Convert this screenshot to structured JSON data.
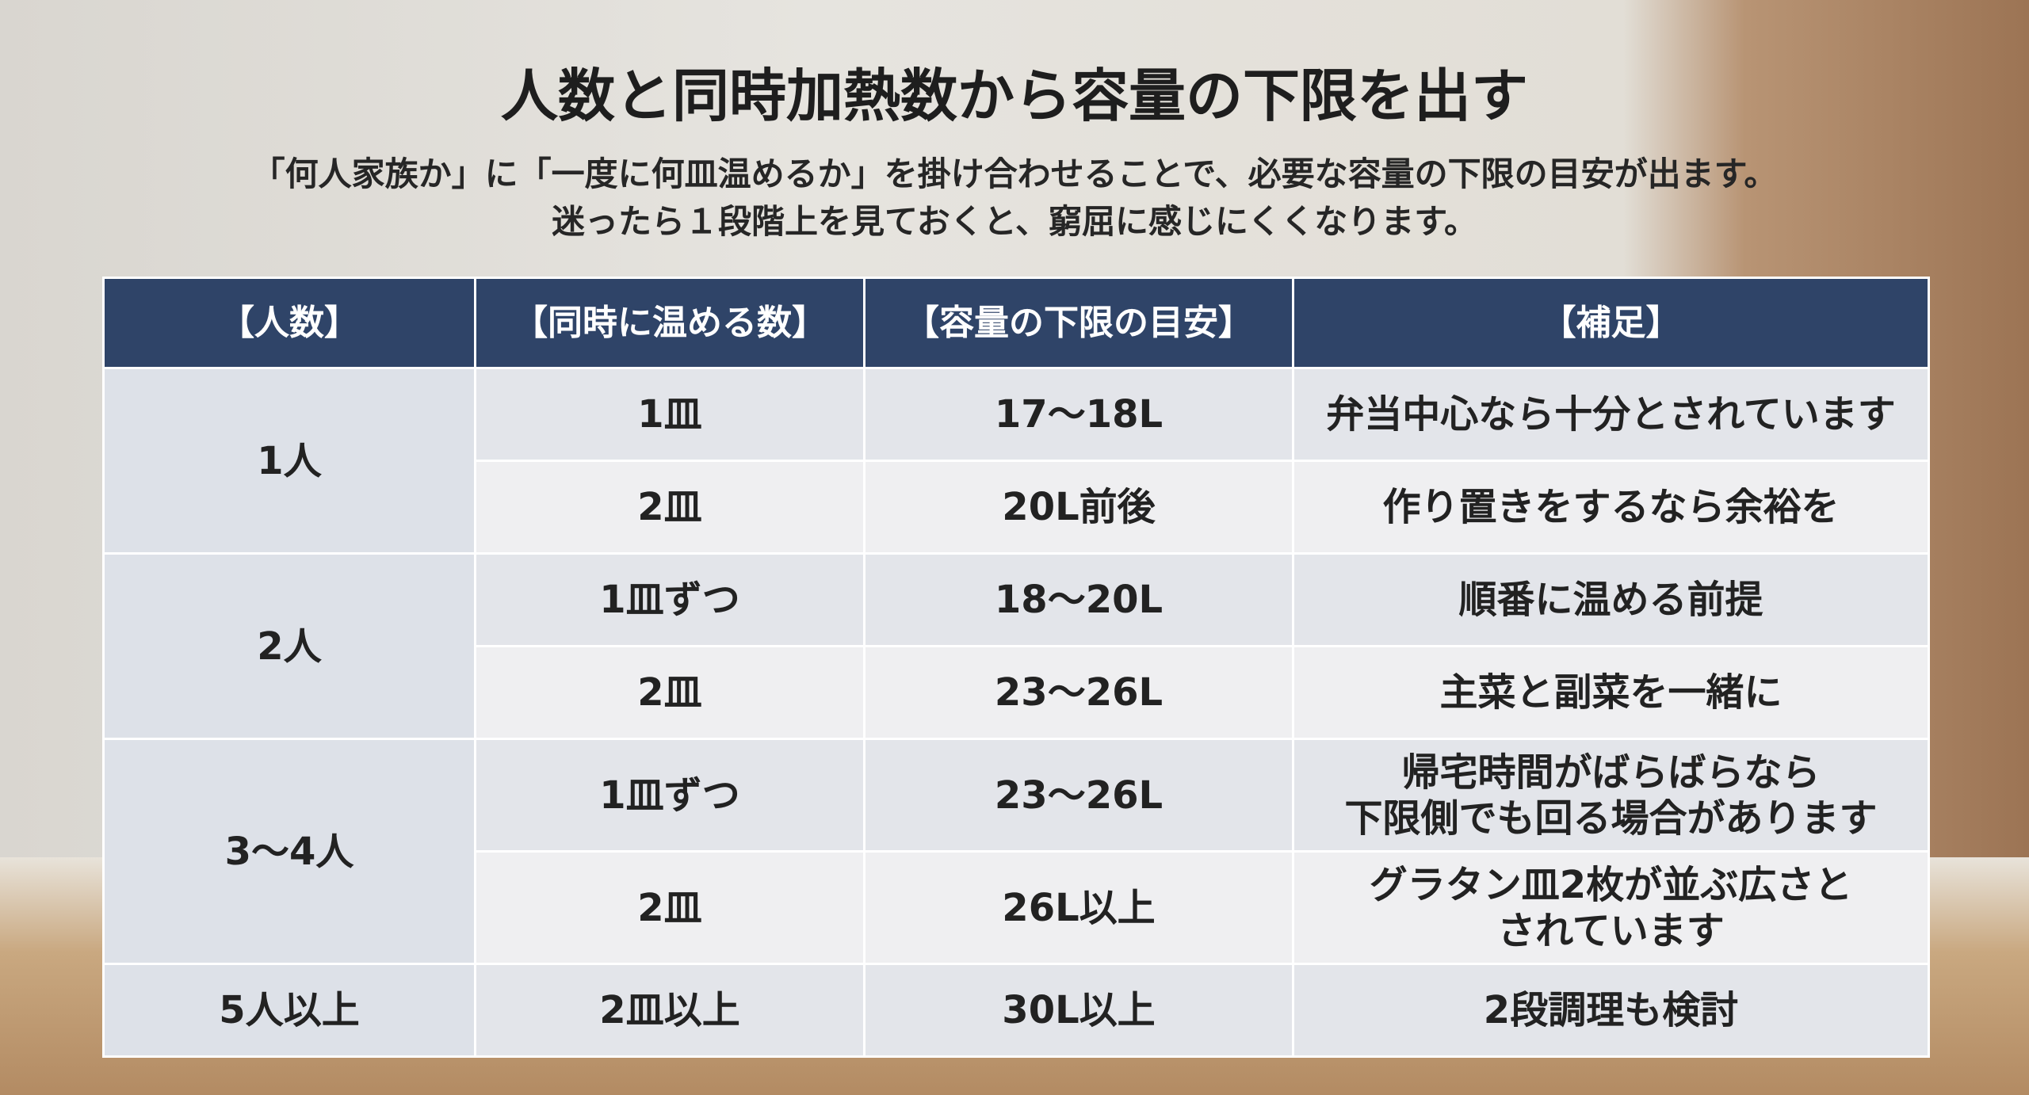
{
  "header": {
    "title": "人数と同時加熱数から容量の下限を出す",
    "subtitle": [
      "「何人家族か」に「一度に何皿温めるか」を掛け合わせることで、必要な容量の下限の目安が出ます。",
      "迷ったら１段階上を見ておくと、窮屈に感じにくくなります。"
    ]
  },
  "table": {
    "columns": [
      "【人数】",
      "【同時に温める数】",
      "【容量の下限の目安】",
      "【補足】"
    ],
    "groups": [
      {
        "people": "1人",
        "rows": [
          [
            "1皿",
            "17〜18L",
            "弁当中心なら十分とされています"
          ],
          [
            "2皿",
            "20L前後",
            "作り置きをするなら余裕を"
          ]
        ]
      },
      {
        "people": "2人",
        "rows": [
          [
            "1皿ずつ",
            "18〜20L",
            "順番に温める前提"
          ],
          [
            "2皿",
            "23〜26L",
            "主菜と副菜を一緒に"
          ]
        ]
      },
      {
        "people": "3〜4人",
        "rows": [
          [
            "1皿ずつ",
            "23〜26L",
            "帰宅時間がばらばらなら\n下限側でも回る場合があります"
          ],
          [
            "2皿",
            "26L以上",
            "グラタン皿2枚が並ぶ広さと\nされています"
          ]
        ]
      },
      {
        "people": "5人以上",
        "rows": [
          [
            "2皿以上",
            "30L以上",
            "2段調理も検討"
          ]
        ]
      }
    ]
  }
}
